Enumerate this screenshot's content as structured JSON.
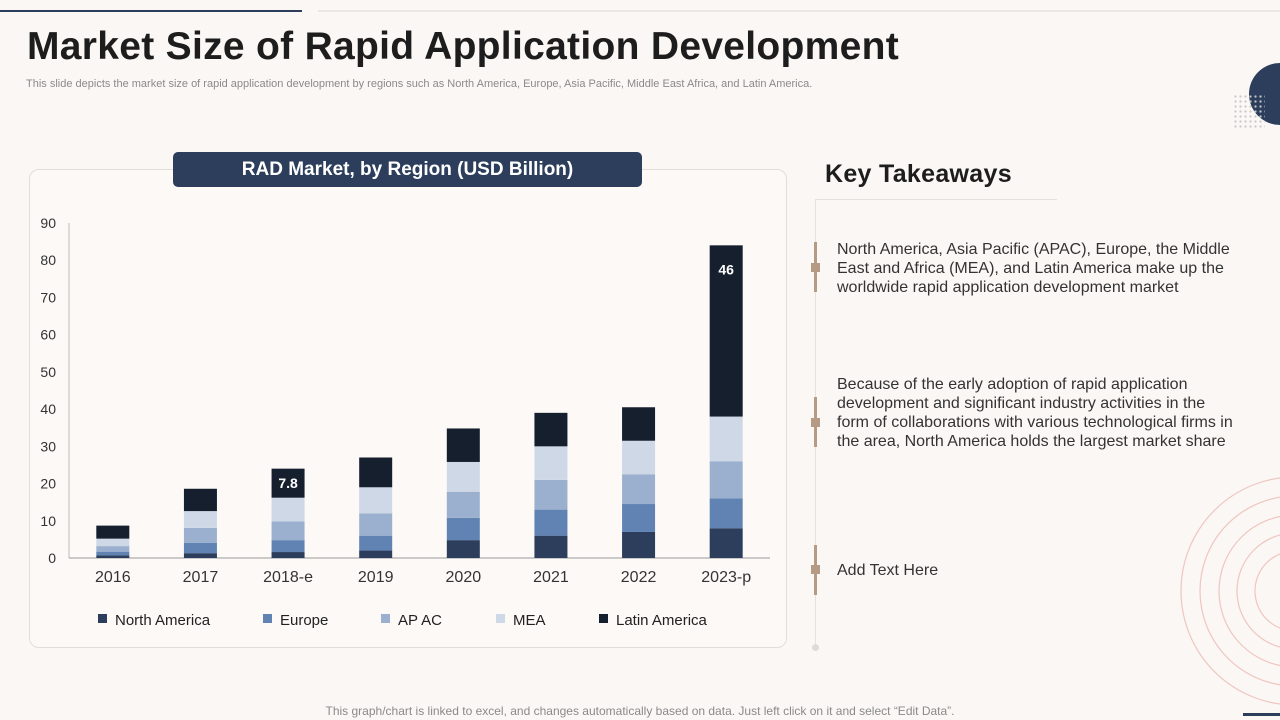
{
  "page": {
    "title": "Market Size of Rapid Application Development",
    "subtitle": "This slide depicts the market size of rapid application development by regions such as North America, Europe, Asia Pacific, Middle East Africa, and Latin America.",
    "footer": "This graph/chart is linked to excel, and changes automatically based on data. Just left click on it and select “Edit Data”."
  },
  "takeaways": {
    "title": "Key Takeaways",
    "items": [
      "North America, Asia Pacific (APAC), Europe, the Middle East and Africa (MEA), and Latin America make up the worldwide rapid application development market",
      "Because of the early adoption of rapid application development and significant industry activities in the form of collaborations with various technological firms in the area, North America holds the largest market share",
      "Add Text Here"
    ]
  },
  "colors": {
    "accent": "#2c3e5c",
    "timeline": "#b59a84"
  },
  "chart_data": {
    "type": "bar",
    "stacked": true,
    "title": "RAD Market, by Region (USD Billion)",
    "xlabel": "",
    "ylabel": "",
    "ylim": [
      0,
      90
    ],
    "yticks": [
      0,
      10,
      20,
      30,
      40,
      50,
      60,
      70,
      80,
      90
    ],
    "legend_position": "bottom",
    "categories": [
      "2016",
      "2017",
      "2018-e",
      "2019",
      "2020",
      "2021",
      "2022",
      "2023-p"
    ],
    "series": [
      {
        "name": "North America",
        "color": "#2c3e5c",
        "values": [
          0.7,
          1.3,
          1.6,
          2.0,
          4.8,
          6.0,
          7.0,
          8.0
        ]
      },
      {
        "name": "Europe",
        "color": "#6083b4",
        "values": [
          1.0,
          2.8,
          3.2,
          4.0,
          6.0,
          7.0,
          7.5,
          8.0
        ]
      },
      {
        "name": "AP AC",
        "color": "#9bb0ce",
        "values": [
          1.5,
          4.0,
          5.0,
          6.0,
          7.0,
          8.0,
          8.0,
          10.0
        ]
      },
      {
        "name": "MEA",
        "color": "#cfd8e6",
        "values": [
          2.0,
          4.5,
          6.4,
          7.0,
          8.0,
          9.0,
          9.0,
          12.0
        ]
      },
      {
        "name": "Latin America",
        "color": "#151f2e",
        "values": [
          3.5,
          6.0,
          7.8,
          8.0,
          9.0,
          9.0,
          9.0,
          46.0
        ]
      }
    ],
    "annotations": [
      {
        "category": "2018-e",
        "series": "Latin America",
        "label": "7.8"
      },
      {
        "category": "2023-p",
        "series": "Latin America",
        "label": "46"
      }
    ]
  }
}
